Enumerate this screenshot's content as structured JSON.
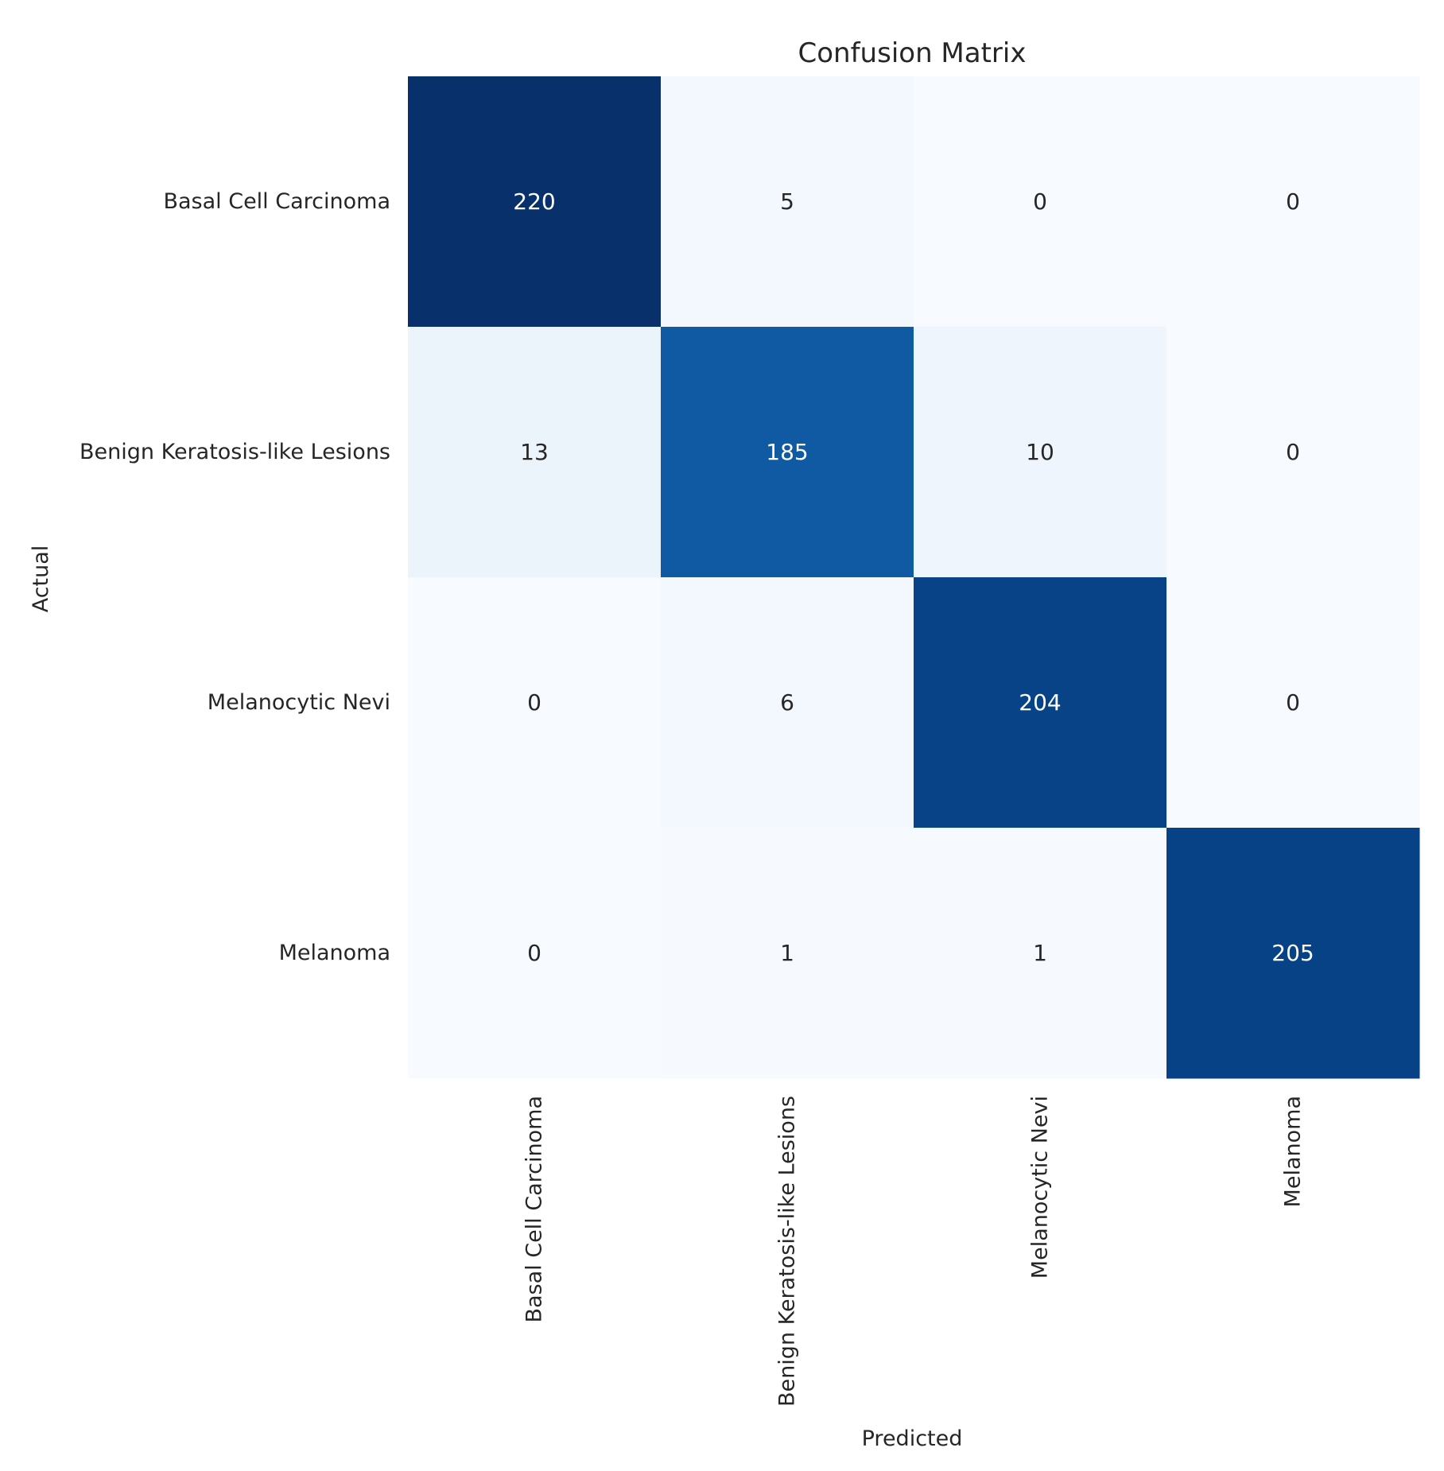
{
  "chart_data": {
    "type": "heatmap",
    "title": "Confusion Matrix",
    "xlabel": "Predicted",
    "ylabel": "Actual",
    "x_categories": [
      "Basal Cell Carcinoma",
      "Benign Keratosis-like Lesions",
      "Melanocytic Nevi",
      "Melanoma"
    ],
    "y_categories": [
      "Basal Cell Carcinoma",
      "Benign Keratosis-like Lesions",
      "Melanocytic Nevi",
      "Melanoma"
    ],
    "values": [
      [
        220,
        5,
        0,
        0
      ],
      [
        13,
        185,
        10,
        0
      ],
      [
        0,
        6,
        204,
        0
      ],
      [
        0,
        1,
        1,
        205
      ]
    ],
    "colormap": "Blues",
    "color_low": "#f7fbff",
    "color_high": "#08306b",
    "colorbar": false,
    "grid": false
  }
}
